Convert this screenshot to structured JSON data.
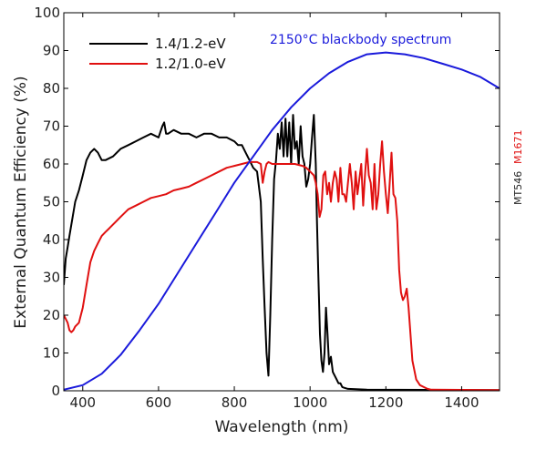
{
  "chart_data": {
    "type": "line",
    "title": "",
    "xlabel": "Wavelength (nm)",
    "ylabel": "External Quantum Efficiency (%)",
    "xlim": [
      350,
      1500
    ],
    "ylim": [
      0,
      100
    ],
    "x_ticks": [
      400,
      600,
      800,
      1000,
      1200,
      1400
    ],
    "y_ticks": [
      0,
      10,
      20,
      30,
      40,
      50,
      60,
      70,
      80,
      90,
      100
    ],
    "grid": false,
    "legend_position": "top-left",
    "annotations": [
      {
        "text": "2150°C blackbody spectrum",
        "color": "#1a1adb"
      }
    ],
    "side_labels": [
      {
        "text": "MT546",
        "color": "#222222"
      },
      {
        "text": "M1671",
        "color": "#e01010"
      }
    ],
    "series": [
      {
        "name": "1.4/1.2-eV",
        "color": "#000000",
        "x": [
          350,
          355,
          360,
          365,
          370,
          375,
          380,
          390,
          400,
          410,
          420,
          430,
          440,
          450,
          460,
          480,
          500,
          520,
          540,
          560,
          580,
          600,
          610,
          615,
          620,
          625,
          640,
          660,
          680,
          700,
          720,
          740,
          760,
          780,
          800,
          810,
          820,
          830,
          840,
          850,
          860,
          870,
          875,
          880,
          885,
          890,
          895,
          900,
          905,
          910,
          915,
          920,
          925,
          930,
          935,
          940,
          945,
          950,
          955,
          960,
          965,
          970,
          975,
          980,
          985,
          990,
          995,
          1000,
          1005,
          1010,
          1015,
          1018,
          1022,
          1026,
          1030,
          1034,
          1038,
          1042,
          1046,
          1050,
          1055,
          1060,
          1065,
          1070,
          1075,
          1080,
          1085,
          1090,
          1100,
          1150,
          1500
        ],
        "y": [
          28,
          35,
          38,
          41,
          44,
          47,
          50,
          53,
          57,
          61,
          63,
          64,
          63,
          61,
          61,
          62,
          64,
          65,
          66,
          67,
          68,
          67,
          70,
          71,
          68,
          68,
          69,
          68,
          68,
          67,
          68,
          68,
          67,
          67,
          66,
          65,
          65,
          63,
          61,
          59,
          58,
          50,
          35,
          22,
          10,
          4,
          20,
          40,
          56,
          61,
          68,
          64,
          71,
          62,
          72,
          62,
          71,
          60,
          73,
          64,
          66,
          60,
          70,
          62,
          60,
          54,
          56,
          60,
          67,
          73,
          60,
          45,
          30,
          15,
          8,
          5,
          10,
          22,
          15,
          7,
          9,
          5,
          4,
          3,
          2,
          2,
          1,
          0.8,
          0.5,
          0.3,
          0.2
        ]
      },
      {
        "name": "1.2/1.0-eV",
        "color": "#e01010",
        "x": [
          350,
          355,
          360,
          365,
          370,
          375,
          380,
          390,
          400,
          410,
          420,
          430,
          440,
          450,
          460,
          470,
          480,
          500,
          520,
          540,
          560,
          580,
          600,
          620,
          640,
          660,
          680,
          700,
          720,
          740,
          760,
          780,
          800,
          820,
          840,
          860,
          870,
          875,
          880,
          885,
          890,
          900,
          920,
          940,
          960,
          980,
          990,
          1000,
          1010,
          1015,
          1020,
          1025,
          1030,
          1035,
          1040,
          1045,
          1050,
          1055,
          1060,
          1065,
          1070,
          1075,
          1080,
          1085,
          1090,
          1095,
          1100,
          1105,
          1110,
          1115,
          1120,
          1125,
          1130,
          1135,
          1140,
          1145,
          1150,
          1155,
          1160,
          1165,
          1170,
          1175,
          1180,
          1185,
          1190,
          1195,
          1200,
          1205,
          1210,
          1215,
          1220,
          1225,
          1230,
          1235,
          1240,
          1245,
          1250,
          1255,
          1260,
          1270,
          1280,
          1290,
          1300,
          1310,
          1320,
          1500
        ],
        "y": [
          20,
          19,
          18,
          16,
          15.5,
          16,
          17,
          18,
          22,
          28,
          34,
          37,
          39,
          41,
          42,
          43,
          44,
          46,
          48,
          49,
          50,
          51,
          51.5,
          52,
          53,
          53.5,
          54,
          55,
          56,
          57,
          58,
          59,
          59.5,
          60,
          60.5,
          60.5,
          60,
          55,
          58,
          60,
          60.5,
          60,
          60,
          60,
          60,
          59.5,
          59,
          58,
          57,
          55,
          52,
          46,
          48,
          57,
          58,
          52,
          55,
          50,
          55,
          58,
          56,
          50,
          59,
          52,
          52,
          50,
          55,
          60,
          55,
          48,
          58,
          52,
          56,
          60,
          49,
          57,
          64,
          57,
          55,
          48,
          60,
          48,
          52,
          60,
          66,
          58,
          52,
          47,
          55,
          63,
          52,
          51,
          45,
          32,
          26,
          24,
          25,
          27,
          22,
          8,
          3,
          1.5,
          1,
          0.5,
          0.3,
          0.2
        ]
      },
      {
        "name": "2150°C blackbody spectrum",
        "color": "#1a1adb",
        "x": [
          350,
          400,
          450,
          500,
          550,
          600,
          650,
          700,
          750,
          800,
          850,
          900,
          950,
          1000,
          1050,
          1100,
          1150,
          1200,
          1250,
          1300,
          1350,
          1400,
          1450,
          1500
        ],
        "y": [
          0.3,
          1.5,
          4.5,
          9.5,
          16,
          23,
          31,
          39,
          47,
          55,
          62,
          69,
          75,
          80,
          84,
          87,
          89,
          89.5,
          89,
          88,
          86.5,
          85,
          83,
          80
        ]
      }
    ]
  }
}
